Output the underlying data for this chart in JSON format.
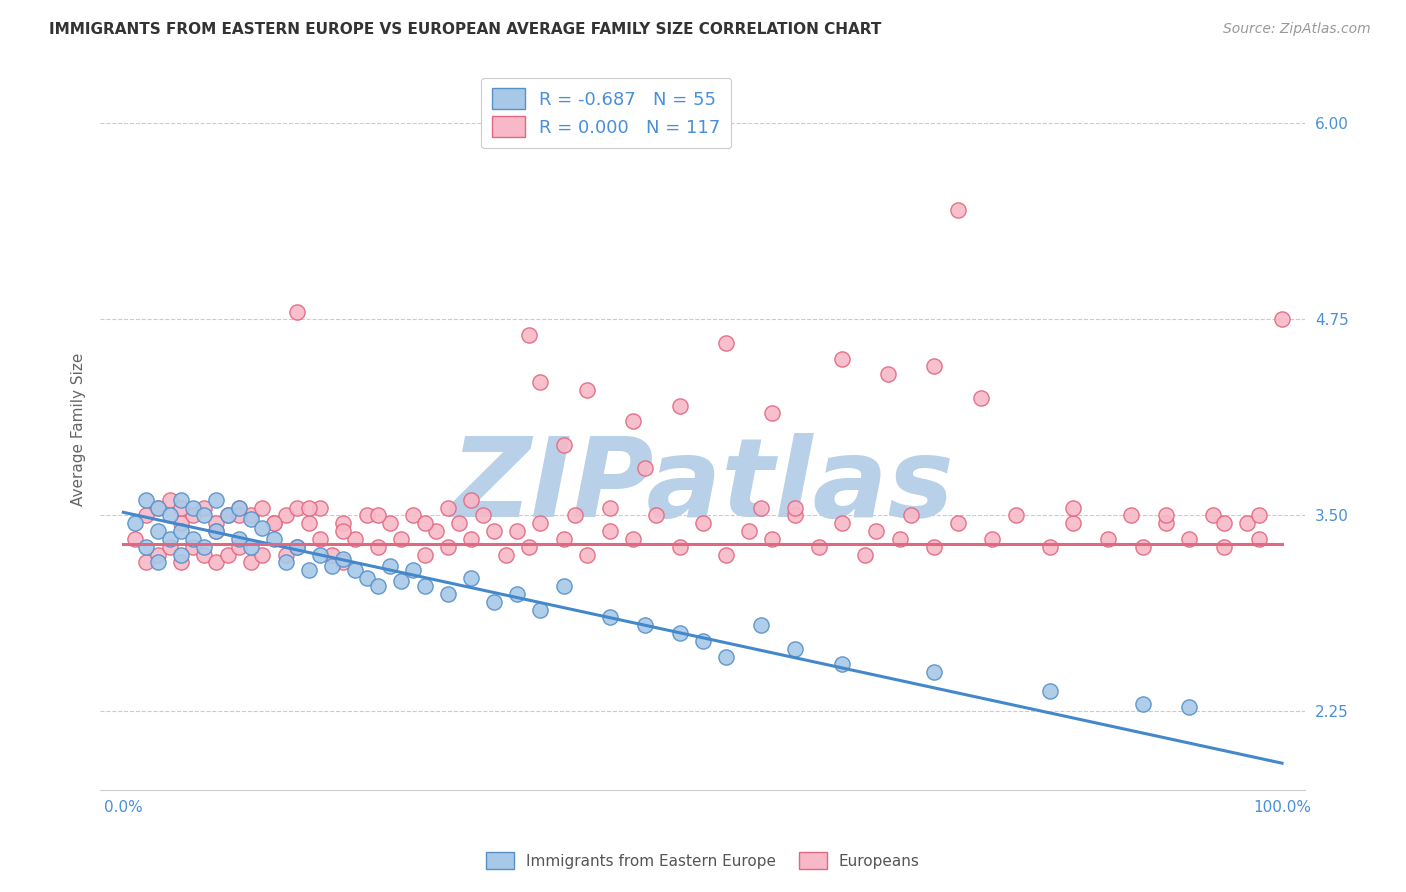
{
  "title": "IMMIGRANTS FROM EASTERN EUROPE VS EUROPEAN AVERAGE FAMILY SIZE CORRELATION CHART",
  "source": "Source: ZipAtlas.com",
  "ylabel": "Average Family Size",
  "xlim": [
    -0.02,
    1.02
  ],
  "ylim": [
    1.75,
    6.35
  ],
  "yticks": [
    2.25,
    3.5,
    4.75,
    6.0
  ],
  "xticks": [
    0.0,
    0.1,
    0.2,
    0.3,
    0.4,
    0.5,
    0.6,
    0.7,
    0.8,
    0.9,
    1.0
  ],
  "xticklabels": [
    "0.0%",
    "",
    "",
    "",
    "",
    "",
    "",
    "",
    "",
    "",
    "100.0%"
  ],
  "blue_fill": "#a8c8e8",
  "blue_edge": "#5590c8",
  "pink_fill": "#f8b8c8",
  "pink_edge": "#e06880",
  "blue_line_color": "#4488cc",
  "pink_line_color": "#e06880",
  "title_color": "#333333",
  "ytick_color": "#4a90d9",
  "xtick_color": "#4a90d9",
  "grid_color": "#cccccc",
  "blue_R": -0.687,
  "blue_N": 55,
  "pink_R": 0.0,
  "pink_N": 117,
  "watermark_text": "ZIPatlas",
  "watermark_color": "#b8d0e8",
  "blue_line_x0": 0.0,
  "blue_line_y0": 3.52,
  "blue_line_x1": 1.0,
  "blue_line_y1": 1.92,
  "pink_line_x0": 0.0,
  "pink_line_y0": 3.32,
  "pink_line_x1": 1.0,
  "pink_line_y1": 3.32,
  "blue_x": [
    0.01,
    0.02,
    0.02,
    0.03,
    0.03,
    0.03,
    0.04,
    0.04,
    0.05,
    0.05,
    0.05,
    0.06,
    0.06,
    0.07,
    0.07,
    0.08,
    0.08,
    0.09,
    0.1,
    0.1,
    0.11,
    0.11,
    0.12,
    0.13,
    0.14,
    0.15,
    0.16,
    0.17,
    0.18,
    0.19,
    0.2,
    0.21,
    0.22,
    0.23,
    0.24,
    0.25,
    0.26,
    0.28,
    0.3,
    0.32,
    0.34,
    0.36,
    0.38,
    0.42,
    0.45,
    0.48,
    0.5,
    0.52,
    0.55,
    0.58,
    0.62,
    0.7,
    0.8,
    0.88,
    0.92
  ],
  "blue_y": [
    3.45,
    3.6,
    3.3,
    3.55,
    3.4,
    3.2,
    3.5,
    3.35,
    3.6,
    3.4,
    3.25,
    3.55,
    3.35,
    3.5,
    3.3,
    3.6,
    3.4,
    3.5,
    3.55,
    3.35,
    3.48,
    3.3,
    3.42,
    3.35,
    3.2,
    3.3,
    3.15,
    3.25,
    3.18,
    3.22,
    3.15,
    3.1,
    3.05,
    3.18,
    3.08,
    3.15,
    3.05,
    3.0,
    3.1,
    2.95,
    3.0,
    2.9,
    3.05,
    2.85,
    2.8,
    2.75,
    2.7,
    2.6,
    2.8,
    2.65,
    2.55,
    2.5,
    2.38,
    2.3,
    2.28
  ],
  "pink_x": [
    0.01,
    0.02,
    0.02,
    0.03,
    0.03,
    0.04,
    0.04,
    0.05,
    0.05,
    0.06,
    0.06,
    0.07,
    0.07,
    0.08,
    0.08,
    0.09,
    0.09,
    0.1,
    0.1,
    0.11,
    0.11,
    0.12,
    0.12,
    0.13,
    0.14,
    0.14,
    0.15,
    0.15,
    0.16,
    0.17,
    0.17,
    0.18,
    0.19,
    0.19,
    0.2,
    0.21,
    0.22,
    0.23,
    0.24,
    0.25,
    0.26,
    0.27,
    0.28,
    0.29,
    0.3,
    0.31,
    0.33,
    0.34,
    0.35,
    0.36,
    0.38,
    0.39,
    0.4,
    0.42,
    0.44,
    0.46,
    0.48,
    0.5,
    0.52,
    0.54,
    0.56,
    0.58,
    0.6,
    0.62,
    0.64,
    0.65,
    0.67,
    0.68,
    0.7,
    0.72,
    0.75,
    0.77,
    0.8,
    0.82,
    0.85,
    0.87,
    0.88,
    0.9,
    0.92,
    0.94,
    0.95,
    0.97,
    0.98,
    1.0,
    0.36,
    0.48,
    0.52,
    0.56,
    0.62,
    0.7,
    0.3,
    0.4,
    0.44,
    0.58,
    0.66,
    0.74,
    0.82,
    0.9,
    0.95,
    0.98,
    0.05,
    0.08,
    0.1,
    0.13,
    0.16,
    0.19,
    0.22,
    0.26,
    0.28,
    0.32,
    0.35,
    0.38,
    0.42,
    0.45,
    0.15,
    0.55,
    0.72
  ],
  "pink_y": [
    3.35,
    3.5,
    3.2,
    3.55,
    3.25,
    3.6,
    3.3,
    3.45,
    3.2,
    3.5,
    3.3,
    3.55,
    3.25,
    3.45,
    3.2,
    3.5,
    3.25,
    3.55,
    3.3,
    3.5,
    3.2,
    3.55,
    3.25,
    3.45,
    3.5,
    3.25,
    3.55,
    3.3,
    3.45,
    3.35,
    3.55,
    3.25,
    3.45,
    3.2,
    3.35,
    3.5,
    3.3,
    3.45,
    3.35,
    3.5,
    3.25,
    3.4,
    3.3,
    3.45,
    3.35,
    3.5,
    3.25,
    3.4,
    3.3,
    3.45,
    3.35,
    3.5,
    3.25,
    3.4,
    3.35,
    3.5,
    3.3,
    3.45,
    3.25,
    3.4,
    3.35,
    3.5,
    3.3,
    3.45,
    3.25,
    3.4,
    3.35,
    3.5,
    3.3,
    3.45,
    3.35,
    3.5,
    3.3,
    3.45,
    3.35,
    3.5,
    3.3,
    3.45,
    3.35,
    3.5,
    3.3,
    3.45,
    3.35,
    4.75,
    4.35,
    4.2,
    4.6,
    4.15,
    4.5,
    4.45,
    3.6,
    4.3,
    4.1,
    3.55,
    4.4,
    4.25,
    3.55,
    3.5,
    3.45,
    3.5,
    3.55,
    3.4,
    3.5,
    3.45,
    3.55,
    3.4,
    3.5,
    3.45,
    3.55,
    3.4,
    4.65,
    3.95,
    3.55,
    3.8,
    4.8,
    3.55,
    5.45
  ]
}
